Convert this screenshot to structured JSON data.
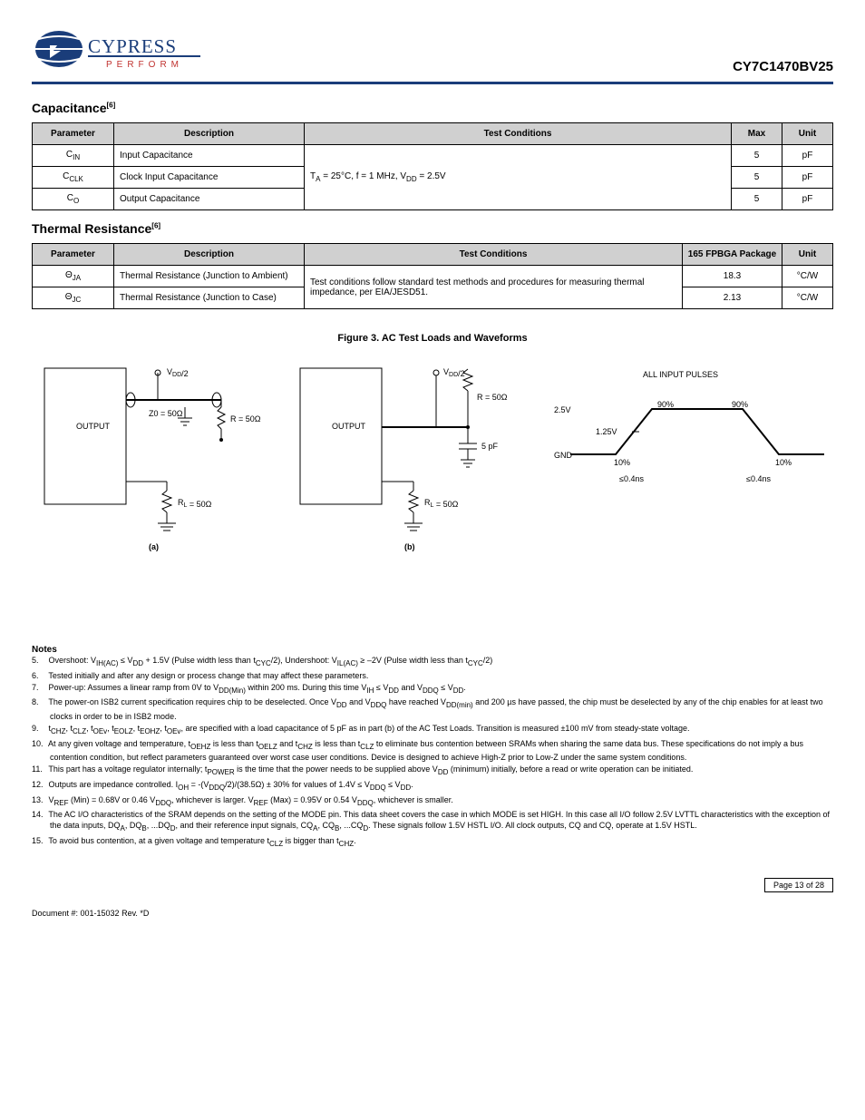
{
  "header": {
    "product": "CY7C1470BV25"
  },
  "logo": {
    "brand": "CYPRESS",
    "tagline": "PERFORM",
    "globe_fill": "#1a3d7a",
    "line_color": "#1a3d7a",
    "tagline_color": "#c0322f"
  },
  "capacitance": {
    "title": "Capacitance",
    "footnote": "[6]",
    "columns": [
      "Parameter",
      "Description",
      "Test Conditions",
      "Max",
      "Unit"
    ],
    "rows": [
      {
        "p": "C",
        "psub": "IN",
        "desc": "Input Capacitance",
        "cond_html": "T<span class='sub'>A</span> = 25°C, f = 1 MHz, V<span class='sub'>DD</span> = 2.5V",
        "max": "5",
        "unit": "pF"
      },
      {
        "p": "C",
        "psub": "CLK",
        "desc": "Clock Input Capacitance",
        "cond_html": "",
        "max": "5",
        "unit": "pF"
      },
      {
        "p": "C",
        "psub": "O",
        "desc": "Output Capacitance",
        "cond_html": "",
        "max": "5",
        "unit": "pF"
      }
    ]
  },
  "thermal": {
    "title": "Thermal Resistance",
    "footnote": "[6]",
    "columns": [
      "Parameter",
      "Description",
      "Test Conditions",
      "165 FPBGA Package",
      "Unit"
    ],
    "rows": [
      {
        "p": "Θ",
        "psub": "JA",
        "desc": "Thermal Resistance (Junction to Ambient)",
        "cond": "Test conditions follow standard test methods and procedures for measuring thermal impedance, per EIA/JESD51.",
        "val": "18.3",
        "unit": "°C/W"
      },
      {
        "p": "Θ",
        "psub": "JC",
        "desc": "Thermal Resistance (Junction to Case)",
        "cond": "",
        "val": "2.13",
        "unit": "°C/W"
      }
    ]
  },
  "fig3": {
    "title": "Figure 3. AC Test Loads and Waveforms",
    "ckt_a": {
      "vdd_label": "V<tspan dy='2' font-size='7'>DD</tspan>/2",
      "z0_label": "Z0 = 50Ω",
      "r1_label": "R = 50Ω",
      "rl_label": "R<tspan dy='2' font-size='7'>L</tspan> = 50Ω",
      "out_label": "OUTPUT",
      "letter": "(a)"
    },
    "ckt_b": {
      "vdd_label": "V<tspan dy='2' font-size='7'>DD</tspan>/2",
      "r1_label": "R = 50Ω",
      "rl_label": "R<tspan dy='2' font-size='7'>L</tspan> = 50Ω",
      "c_label": "5 pF",
      "out_label": "OUTPUT",
      "letter": "(b)"
    },
    "wave": {
      "rise_fall_label": "ALL INPUT PULSES",
      "vhigh": "2.5V",
      "vlow": "GND",
      "vmid": "1.25V",
      "slew_neg": "≤0.4ns",
      "slew_pos": "≤0.4ns",
      "pct10": "10%",
      "pct90": "90%"
    }
  },
  "notes": {
    "title": "Notes",
    "items": [
      {
        "n": "5.",
        "t": "Overshoot: V<span class='sub'>IH(AC)</span> ≤ V<span class='sub'>DD</span> + 1.5V (Pulse width less than t<span class='sub'>CYC</span>/2), Undershoot: V<span class='sub'>IL(AC)</span> ≥ –2V (Pulse width less than t<span class='sub'>CYC</span>/2)"
      },
      {
        "n": "6.",
        "t": "Tested initially and after any design or process change that may affect these parameters."
      },
      {
        "n": "7.",
        "t": "Power-up: Assumes a linear ramp from 0V to V<span class='sub'>DD(Min)</span> within 200 ms. During this time V<span class='sub'>IH</span> ≤ V<span class='sub'>DD</span> and V<span class='sub'>DDQ</span> ≤ V<span class='sub'>DD</span>."
      },
      {
        "n": "8.",
        "t": "The power-on ISB2 current specification requires chip to be deselected. Once V<span class='sub'>DD</span> and V<span class='sub'>DDQ</span> have reached V<span class='sub'>DD(min)</span> and 200 µs have passed, the chip must be deselected by any of the chip enables for at least two clocks in order to be in ISB2 mode."
      },
      {
        "n": "9.",
        "t": "t<span class='sub'>CHZ</span>, t<span class='sub'>CLZ</span>, t<span class='sub'>OEv</span>, t<span class='sub'>EOLZ</span>, t<span class='sub'>EOHZ</span>, t<span class='sub'>OEv</span>, are specified with a load capacitance of 5 pF as in part (b) of the AC Test Loads. Transition is measured ±100 mV from steady-state voltage."
      },
      {
        "n": "10.",
        "t": "At any given voltage and temperature, t<span class='sub'>OEHZ</span> is less than t<span class='sub'>OELZ</span> and t<span class='sub'>CHZ</span> is less than t<span class='sub'>CLZ</span> to eliminate bus contention between SRAMs when sharing the same data bus. These specifications do not imply a bus contention condition, but reflect parameters guaranteed over worst case user conditions. Device is designed to achieve High-Z prior to Low-Z under the same system conditions."
      },
      {
        "n": "11.",
        "t": "This part has a voltage regulator internally; t<span class='sub'>POWER</span> is the time that the power needs to be supplied above V<span class='sub'>DD</span> (minimum) initially, before a read or write operation can be initiated."
      },
      {
        "n": "12.",
        "t": "Outputs are impedance controlled. I<span class='sub'>OH</span> = -(V<span class='sub'>DDQ</span>/2)/(38.5Ω) ± 30% for values of 1.4V ≤ V<span class='sub'>DDQ</span> ≤ V<span class='sub'>DD</span>."
      },
      {
        "n": "13.",
        "t": "V<span class='sub'>REF</span> (Min) = 0.68V or 0.46 V<span class='sub'>DDQ</span>, whichever is larger. V<span class='sub'>REF</span> (Max) = 0.95V or 0.54 V<span class='sub'>DDQ</span>, whichever is smaller."
      },
      {
        "n": "14.",
        "t": "The AC I/O characteristics of the SRAM depends on the setting of the MODE pin. This data sheet covers the case in which MODE is set HIGH. In this case all I/O follow 2.5V LVTTL characteristics with the exception of the data inputs, DQ<span class='sub'>A</span>, DQ<span class='sub'>B</span>, ...DQ<span class='sub'>D</span>, and their reference input signals, CQ<span class='sub'>A</span>, CQ<span class='sub'>B</span>, ...CQ<span class='sub'>D</span>. These signals follow 1.5V HSTL I/O. All clock outputs, CQ and CQ, operate at 1.5V HSTL."
      },
      {
        "n": "15.",
        "t": "To avoid bus contention, at a given voltage and temperature t<span class='sub'>CLZ</span> is bigger than t<span class='sub'>CHZ</span>."
      }
    ]
  },
  "footer": {
    "docid": "Document #: 001-15032 Rev. *D",
    "page": "Page 13 of 28"
  }
}
